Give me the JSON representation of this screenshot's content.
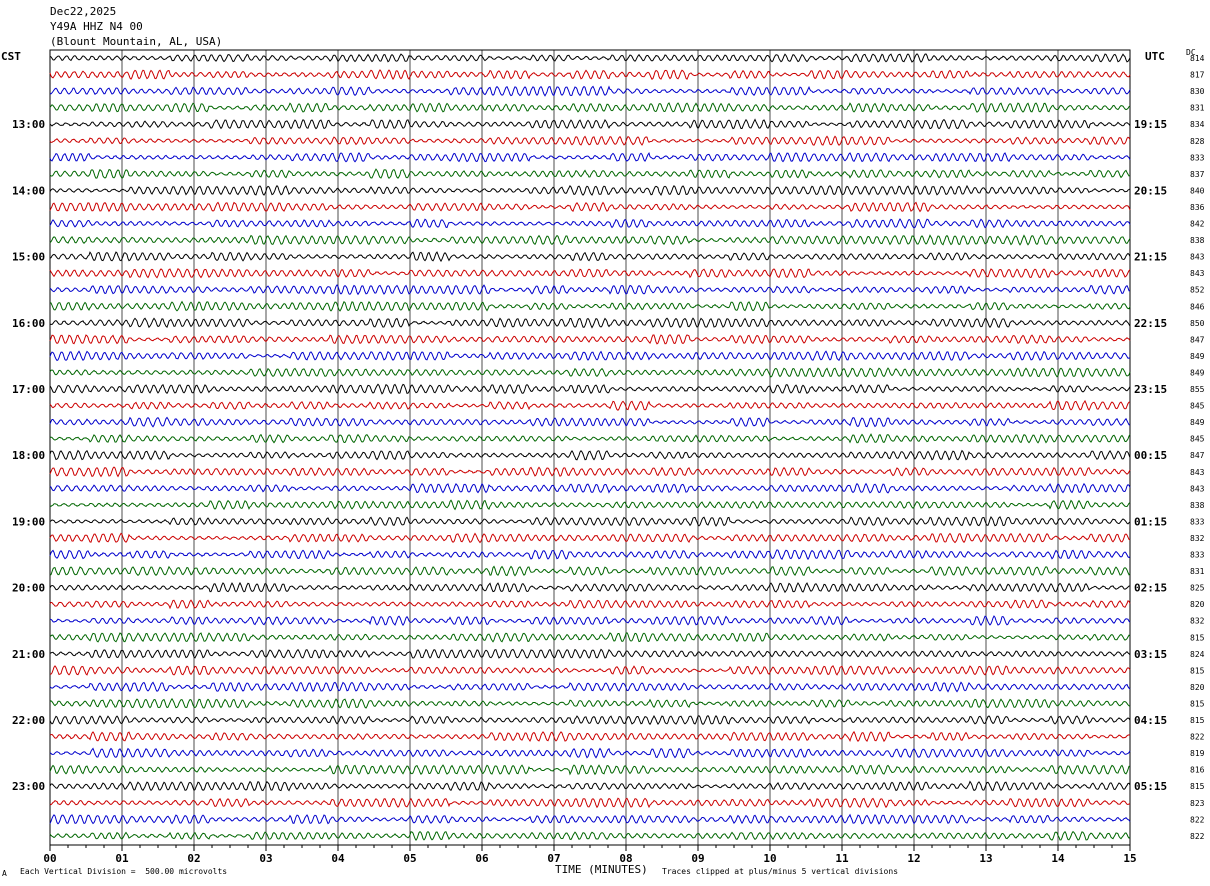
{
  "header": {
    "date": "Dec22,2025",
    "station": "Y49A HHZ N4 00",
    "location": "(Blount Mountain, AL, USA)"
  },
  "left_timezone": "CST",
  "right_timezone": "UTC",
  "dc_label": "DC",
  "footer": {
    "scale_note": "Each Vertical Division =  500.00 microvolts",
    "clip_note": "Traces clipped at plus/minus 5 vertical divisions",
    "marker": "A"
  },
  "colors": {
    "trace_cycle": [
      "#000000",
      "#cc0000",
      "#0000cc",
      "#006600"
    ],
    "grid": "#000000"
  },
  "chart_data": {
    "type": "line",
    "xlabel": "TIME (MINUTES)",
    "x_ticks": [
      "00",
      "01",
      "02",
      "03",
      "04",
      "05",
      "06",
      "07",
      "08",
      "09",
      "10",
      "11",
      "12",
      "13",
      "14",
      "15"
    ],
    "xlim": [
      0,
      15
    ],
    "left_hour_labels": [
      "13:00",
      "14:00",
      "15:00",
      "16:00",
      "17:00",
      "18:00",
      "19:00",
      "20:00",
      "21:00",
      "22:00",
      "23:00"
    ],
    "right_hour_labels": [
      "19:15",
      "20:15",
      "21:15",
      "22:15",
      "23:15",
      "00:15",
      "01:15",
      "02:15",
      "03:15",
      "04:15",
      "05:15"
    ],
    "trace_dc_values": [
      814,
      817,
      830,
      831,
      834,
      828,
      833,
      837,
      840,
      836,
      842,
      838,
      843,
      843,
      852,
      846,
      850,
      847,
      849,
      849,
      855,
      845,
      849,
      845,
      847,
      843,
      843,
      838,
      833,
      832,
      833,
      831,
      825,
      820,
      832,
      815,
      824,
      815,
      820,
      815,
      815,
      822,
      819,
      816,
      815,
      823,
      822,
      822
    ],
    "num_traces": 48
  }
}
